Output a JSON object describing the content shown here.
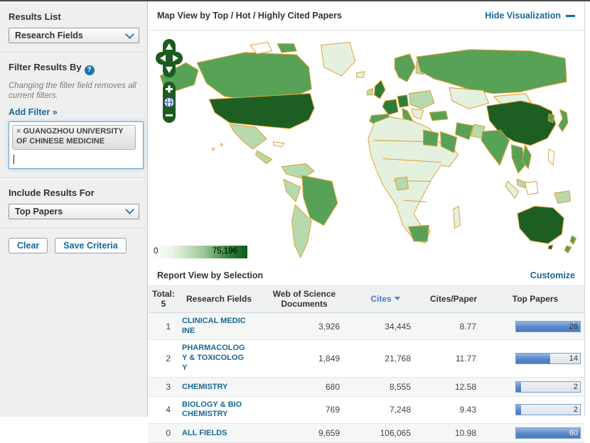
{
  "colors": {
    "link_teal": "#17699b",
    "sort_blue": "#4a7fc0",
    "bar_fill": "#5787c9",
    "map_border_orange": "#dfa033",
    "map_dark_green": "#1d5e23",
    "sidebar_bg": "#efefef"
  },
  "icons": {
    "help_icon": "?",
    "remove_icon": "×",
    "dropdown_chevron": "chevron-down",
    "hide_minus": "minus",
    "sort_caret": "caret-down"
  },
  "sidebar": {
    "results_list_label": "Results List",
    "results_list_value": "Research Fields",
    "filter_heading": "Filter Results By",
    "filter_note": "Changing the filter field removes all current filters.",
    "add_filter_label": "Add Filter »",
    "filter_tag": "GUANGZHOU UNIVERSITY OF CHINESE MEDICINE",
    "include_results_label": "Include Results For",
    "include_results_value": "Top Papers",
    "clear_button": "Clear",
    "save_button": "Save Criteria"
  },
  "map": {
    "title": "Map View by Top / Hot / Highly Cited Papers",
    "hide_link": "Hide Visualization",
    "legend_min": "0",
    "legend_max": "75,196"
  },
  "report": {
    "title": "Report View by Selection",
    "customize_link": "Customize",
    "table": {
      "total_label": "Total:",
      "total_value": "5",
      "columns": [
        "Research Fields",
        "Web of Science Documents",
        "Cites",
        "Cites/Paper",
        "Top Papers"
      ],
      "sorted_column": "Cites",
      "rows": [
        {
          "rank": "1",
          "field": "CLINICAL MEDICINE",
          "documents": "3,926",
          "cites": "34,445",
          "cites_per_paper": "8.77",
          "top_papers": 26
        },
        {
          "rank": "2",
          "field": "PHARMACOLOGY & TOXICOLOGY",
          "documents": "1,849",
          "cites": "21,768",
          "cites_per_paper": "11.77",
          "top_papers": 14
        },
        {
          "rank": "3",
          "field": "CHEMISTRY",
          "documents": "680",
          "cites": "8,555",
          "cites_per_paper": "12.58",
          "top_papers": 2
        },
        {
          "rank": "4",
          "field": "BIOLOGY & BIOCHEMISTRY",
          "documents": "769",
          "cites": "7,248",
          "cites_per_paper": "9.43",
          "top_papers": 2
        },
        {
          "rank": "0",
          "field": "ALL FIELDS",
          "documents": "9,659",
          "cites": "106,065",
          "cites_per_paper": "10.98",
          "top_papers": 60,
          "is_total": true
        }
      ]
    }
  },
  "chart_data": {
    "type": "bar",
    "title": "Top Papers by Research Field",
    "categories": [
      "CLINICAL MEDICINE",
      "PHARMACOLOGY & TOXICOLOGY",
      "CHEMISTRY",
      "BIOLOGY & BIOCHEMISTRY",
      "ALL FIELDS"
    ],
    "values": [
      26,
      14,
      2,
      2,
      60
    ],
    "map_legend_range": [
      0,
      75196
    ]
  }
}
